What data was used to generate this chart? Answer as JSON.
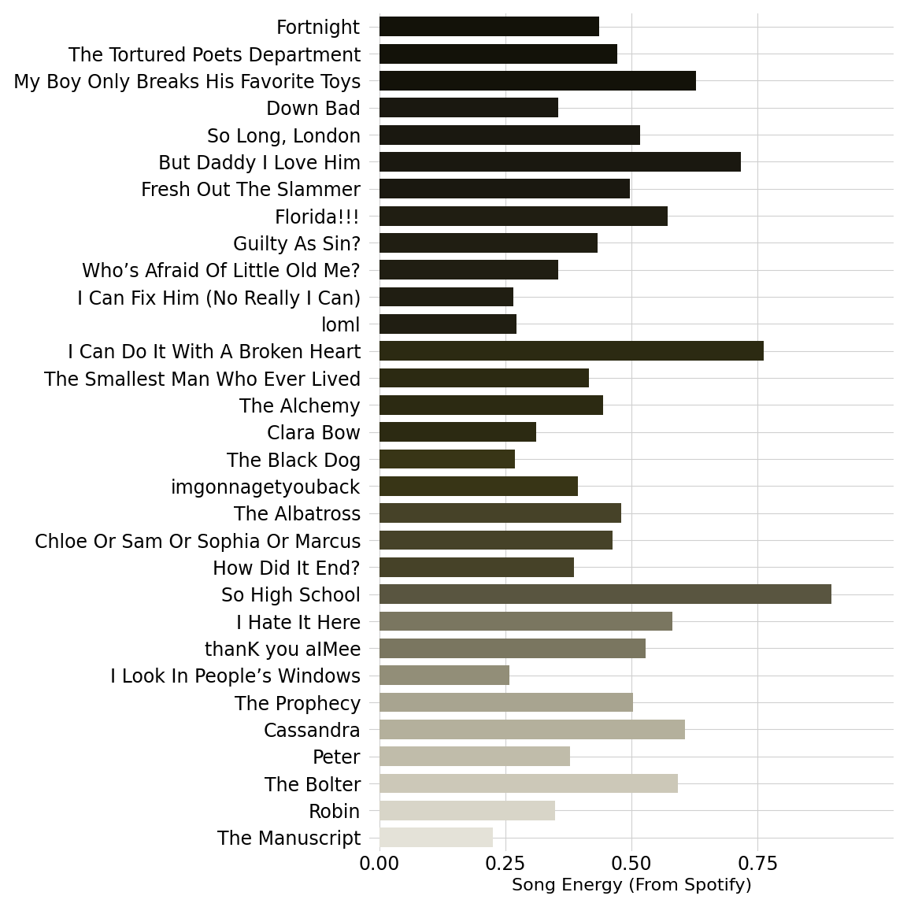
{
  "tracks": [
    "Fortnight",
    "The Tortured Poets Department",
    "My Boy Only Breaks His Favorite Toys",
    "Down Bad",
    "So Long, London",
    "But Daddy I Love Him",
    "Fresh Out The Slammer",
    "Florida!!!",
    "Guilty As Sin?",
    "Who’s Afraid Of Little Old Me?",
    "I Can Fix Him (No Really I Can)",
    "loml",
    "I Can Do It With A Broken Heart",
    "The Smallest Man Who Ever Lived",
    "The Alchemy",
    "Clara Bow",
    "The Black Dog",
    "imgonnagetyouback",
    "The Albatross",
    "Chloe Or Sam Or Sophia Or Marcus",
    "How Did It End?",
    "So High School",
    "I Hate It Here",
    "thanK you aIMee",
    "I Look In People’s Windows",
    "The Prophecy",
    "Cassandra",
    "Peter",
    "The Bolter",
    "Robin",
    "The Manuscript"
  ],
  "energy": [
    0.435,
    0.471,
    0.628,
    0.354,
    0.516,
    0.716,
    0.496,
    0.571,
    0.432,
    0.355,
    0.265,
    0.272,
    0.762,
    0.415,
    0.444,
    0.31,
    0.268,
    0.394,
    0.48,
    0.462,
    0.385,
    0.896,
    0.58,
    0.527,
    0.258,
    0.503,
    0.605,
    0.378,
    0.591,
    0.348,
    0.225
  ],
  "colors": [
    "#131209",
    "#131209",
    "#131209",
    "#1a1810",
    "#1a1810",
    "#1a1810",
    "#1a1810",
    "#201e12",
    "#201e12",
    "#201e12",
    "#201e12",
    "#201e12",
    "#2c2a12",
    "#2c2a12",
    "#2c2a12",
    "#2c2a12",
    "#383516",
    "#383516",
    "#464228",
    "#464228",
    "#464228",
    "#595540",
    "#7a7660",
    "#7a7660",
    "#928e78",
    "#a8a490",
    "#b4b09c",
    "#c0bcaa",
    "#ccc8b8",
    "#d8d5c8",
    "#e4e2d8"
  ],
  "background_color": "#ffffff",
  "xlabel": "Song Energy (From Spotify)",
  "xlim": [
    -0.02,
    1.02
  ],
  "grid_color": "#d0d0d0",
  "bar_height": 0.72,
  "figsize": [
    11.52,
    11.52
  ],
  "dpi": 100,
  "fontsize": 17,
  "xlabel_fontsize": 16
}
